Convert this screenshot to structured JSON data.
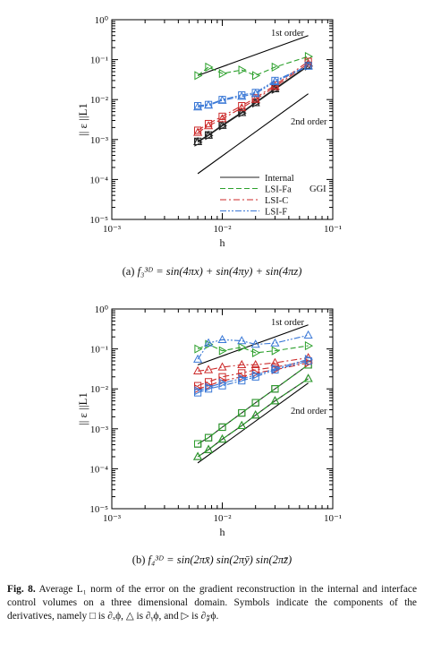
{
  "chart_data": [
    {
      "type": "line",
      "subcaption": "(a)",
      "function": "f₃³ᴰ = sin(4πx) + sin(4πy) + sin(4πz)",
      "xlabel": "h",
      "ylabel": "|| ε ||L1",
      "xscale": "log",
      "yscale": "log",
      "xlim": [
        0.001,
        0.1
      ],
      "ylim": [
        1e-05,
        1
      ],
      "xticks": [
        "10⁻³",
        "10⁻²",
        "10⁻¹"
      ],
      "yticks": [
        "10⁻⁵",
        "10⁻⁴",
        "10⁻³",
        "10⁻²",
        "10⁻¹",
        "10⁰"
      ],
      "legend_position": "bottom-right",
      "legend": [
        "Internal",
        "LSI-Fa",
        "LSI-C",
        "LSI-F"
      ],
      "legend_group_label": "GGI",
      "reference_lines": [
        {
          "name": "1st order",
          "x": [
            0.006,
            0.06
          ],
          "y": [
            0.04,
            0.4
          ]
        },
        {
          "name": "2nd order",
          "x": [
            0.006,
            0.06
          ],
          "y": [
            0.00014,
            0.014
          ]
        }
      ],
      "x": [
        0.006,
        0.0075,
        0.01,
        0.015,
        0.02,
        0.03,
        0.06
      ],
      "series": [
        {
          "name": "Internal",
          "component": "x",
          "color": "#222222",
          "dash": "solid",
          "values": [
            0.0009,
            0.0013,
            0.0023,
            0.0048,
            0.0085,
            0.019,
            0.072
          ]
        },
        {
          "name": "Internal",
          "component": "y",
          "color": "#222222",
          "dash": "solid",
          "values": [
            0.00088,
            0.00128,
            0.00225,
            0.0047,
            0.0083,
            0.0185,
            0.07
          ]
        },
        {
          "name": "Internal",
          "component": "z",
          "color": "#222222",
          "dash": "solid",
          "values": [
            0.00086,
            0.00126,
            0.0022,
            0.0046,
            0.0082,
            0.018,
            0.069
          ]
        },
        {
          "name": "LSI-Fa",
          "component": "z",
          "color": "#2ca02c",
          "dash": "dashed",
          "values": [
            0.04,
            0.065,
            0.045,
            0.055,
            0.04,
            0.065,
            0.12
          ]
        },
        {
          "name": "LSI-C",
          "component": "x",
          "color": "#cc2a2a",
          "dash": "dashdot",
          "values": [
            0.0017,
            0.0025,
            0.0038,
            0.007,
            0.011,
            0.023,
            0.09
          ]
        },
        {
          "name": "LSI-C",
          "component": "y",
          "color": "#cc2a2a",
          "dash": "dashdot",
          "values": [
            0.0015,
            0.0022,
            0.0033,
            0.0062,
            0.01,
            0.021,
            0.08
          ]
        },
        {
          "name": "LSI-F",
          "component": "x",
          "color": "#3a78d6",
          "dash": "dashdotdot",
          "values": [
            0.007,
            0.0075,
            0.01,
            0.013,
            0.015,
            0.03,
            0.07
          ]
        },
        {
          "name": "LSI-F",
          "component": "y",
          "color": "#3a78d6",
          "dash": "dashdotdot",
          "values": [
            0.0065,
            0.0072,
            0.0095,
            0.012,
            0.014,
            0.028,
            0.068
          ]
        }
      ]
    },
    {
      "type": "line",
      "subcaption": "(b)",
      "function": "f₄³ᴰ = sin(2πx̄) sin(2πȳ) sin(2πz̄)",
      "xlabel": "h",
      "ylabel": "|| ε ||L1",
      "xscale": "log",
      "yscale": "log",
      "xlim": [
        0.001,
        0.1
      ],
      "ylim": [
        1e-05,
        1
      ],
      "xticks": [
        "10⁻³",
        "10⁻²",
        "10⁻¹"
      ],
      "yticks": [
        "10⁻⁵",
        "10⁻⁴",
        "10⁻³",
        "10⁻²",
        "10⁻¹",
        "10⁰"
      ],
      "reference_lines": [
        {
          "name": "1st order",
          "x": [
            0.006,
            0.06
          ],
          "y": [
            0.04,
            0.4
          ]
        },
        {
          "name": "2nd order",
          "x": [
            0.006,
            0.06
          ],
          "y": [
            0.00014,
            0.014
          ]
        }
      ],
      "x": [
        0.006,
        0.0075,
        0.01,
        0.015,
        0.02,
        0.03,
        0.06
      ],
      "series": [
        {
          "name": "Internal",
          "component": "x",
          "color": "#222222",
          "dash": "solid",
          "values": [
            0.00042,
            0.0006,
            0.0011,
            0.0025,
            0.0045,
            0.01,
            0.04
          ]
        },
        {
          "name": "Internal",
          "component": "y",
          "color": "#222222",
          "dash": "solid",
          "values": [
            0.0002,
            0.0003,
            0.00055,
            0.0012,
            0.0022,
            0.005,
            0.018
          ]
        },
        {
          "name": "LSI-Fa",
          "component": "x",
          "color": "#2ca02c",
          "dash": "dashed",
          "values": [
            0.00042,
            0.0006,
            0.0011,
            0.0025,
            0.0045,
            0.01,
            0.04
          ]
        },
        {
          "name": "LSI-Fa",
          "component": "y",
          "color": "#2ca02c",
          "dash": "dashed",
          "values": [
            0.0002,
            0.0003,
            0.00055,
            0.0012,
            0.0022,
            0.005,
            0.018
          ]
        },
        {
          "name": "LSI-Fa",
          "component": "z",
          "color": "#2ca02c",
          "dash": "dashed",
          "values": [
            0.1,
            0.13,
            0.09,
            0.11,
            0.08,
            0.09,
            0.12
          ]
        },
        {
          "name": "LSI-C",
          "component": "x",
          "color": "#cc2a2a",
          "dash": "dashdot",
          "values": [
            0.012,
            0.015,
            0.02,
            0.025,
            0.03,
            0.035,
            0.05
          ]
        },
        {
          "name": "LSI-C",
          "component": "y",
          "color": "#cc2a2a",
          "dash": "dashdot",
          "values": [
            0.028,
            0.03,
            0.035,
            0.04,
            0.04,
            0.045,
            0.06
          ]
        },
        {
          "name": "LSI-C",
          "component": "z",
          "color": "#cc2a2a",
          "dash": "dashdot",
          "values": [
            0.01,
            0.012,
            0.016,
            0.02,
            0.025,
            0.03,
            0.045
          ]
        },
        {
          "name": "LSI-F",
          "component": "x",
          "color": "#3a78d6",
          "dash": "dashdotdot",
          "values": [
            0.008,
            0.01,
            0.012,
            0.016,
            0.02,
            0.03,
            0.05
          ]
        },
        {
          "name": "LSI-F",
          "component": "y",
          "color": "#3a78d6",
          "dash": "dashdotdot",
          "values": [
            0.055,
            0.14,
            0.17,
            0.16,
            0.13,
            0.14,
            0.22
          ]
        },
        {
          "name": "LSI-F",
          "component": "z",
          "color": "#3a78d6",
          "dash": "dashdotdot",
          "values": [
            0.009,
            0.011,
            0.014,
            0.018,
            0.022,
            0.032,
            0.055
          ]
        }
      ]
    }
  ],
  "annotations": {
    "first_order": "1st order",
    "second_order": "2nd order"
  },
  "caption": {
    "label": "Fig. 8.",
    "text": "Average L₁ norm of the error on the gradient reconstruction in the internal and interface control volumes on a three dimensional domain. Symbols indicate the components of the derivatives, namely □ is ∂ₓϕ, △ is ∂ᵧϕ, and ▷ is ∂𝓏ϕ."
  },
  "symbols": {
    "x": "square",
    "y": "triangle-up",
    "z": "triangle-right"
  }
}
